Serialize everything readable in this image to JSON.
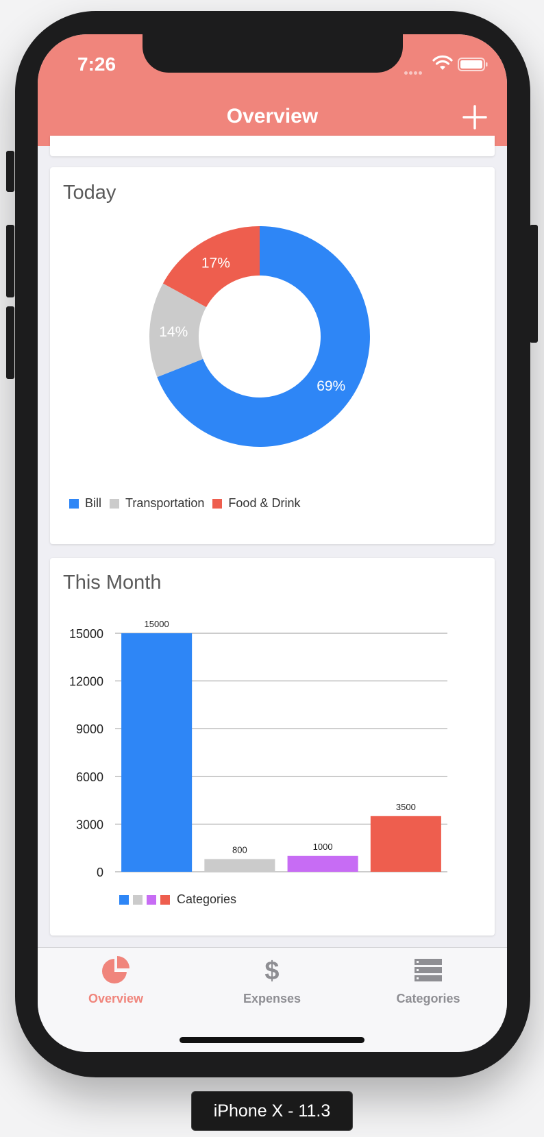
{
  "status_bar": {
    "time": "7:26"
  },
  "header": {
    "title": "Overview",
    "add_icon": "plus-icon"
  },
  "today_card": {
    "title": "Today",
    "legend": [
      {
        "label": "Bill",
        "color": "#2e86f6"
      },
      {
        "label": "Transportation",
        "color": "#cbcbcb"
      },
      {
        "label": "Food & Drink",
        "color": "#ee5e4e"
      }
    ]
  },
  "month_card": {
    "title": "This Month",
    "legend_label": "Categories",
    "legend_colors": [
      "#2e86f6",
      "#cbcbcb",
      "#c76cf4",
      "#ee5e4e"
    ]
  },
  "chart_data": [
    {
      "type": "pie",
      "title": "Today",
      "categories": [
        "Bill",
        "Transportation",
        "Food & Drink"
      ],
      "values": [
        69,
        14,
        17
      ],
      "value_labels": [
        "69%",
        "14%",
        "17%"
      ],
      "colors": [
        "#2e86f6",
        "#cbcbcb",
        "#ee5e4e"
      ],
      "donut": true,
      "legend": "bottom-left"
    },
    {
      "type": "bar",
      "title": "This Month",
      "categories": [
        "",
        "",
        "",
        ""
      ],
      "values": [
        15000,
        800,
        1000,
        3500
      ],
      "colors": [
        "#2e86f6",
        "#cbcbcb",
        "#c76cf4",
        "#ee5e4e"
      ],
      "ylim": [
        0,
        15000
      ],
      "yticks": [
        "0",
        "3000",
        "6000",
        "9000",
        "12000",
        "15000"
      ],
      "grid": true,
      "legend": "bottom-left",
      "series": [
        {
          "name": "Categories",
          "values": [
            15000,
            800,
            1000,
            3500
          ]
        }
      ]
    }
  ],
  "tabbar": {
    "tabs": [
      {
        "label": "Overview",
        "icon": "pie-chart-icon",
        "active": true
      },
      {
        "label": "Expenses",
        "icon": "dollar-icon",
        "active": false
      },
      {
        "label": "Categories",
        "icon": "list-icon",
        "active": false
      }
    ]
  },
  "simulator_label": "iPhone X - 11.3"
}
